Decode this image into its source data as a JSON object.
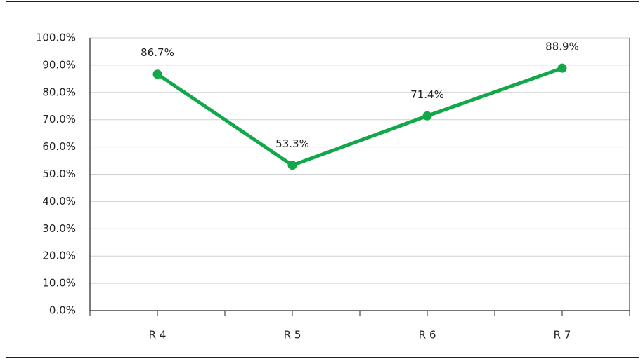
{
  "chart_data": {
    "type": "line",
    "categories": [
      "R 4",
      "R 5",
      "R 6",
      "R 7"
    ],
    "series": [
      {
        "color": "#12a84a",
        "values": [
          86.7,
          53.3,
          71.4,
          88.9
        ],
        "value_labels": [
          "86.7%",
          "53.3%",
          "71.4%",
          "88.9%"
        ]
      }
    ],
    "ylim": [
      0,
      100
    ],
    "yticks": [
      {
        "value": 0,
        "label": "0.0%"
      },
      {
        "value": 10,
        "label": "10.0%"
      },
      {
        "value": 20,
        "label": "20.0%"
      },
      {
        "value": 30,
        "label": "30.0%"
      },
      {
        "value": 40,
        "label": "40.0%"
      },
      {
        "value": 50,
        "label": "50.0%"
      },
      {
        "value": 60,
        "label": "60.0%"
      },
      {
        "value": 70,
        "label": "70.0%"
      },
      {
        "value": 80,
        "label": "80.0%"
      },
      {
        "value": 90,
        "label": "90.0%"
      },
      {
        "value": 100,
        "label": "100.0%"
      }
    ],
    "grid": true
  }
}
